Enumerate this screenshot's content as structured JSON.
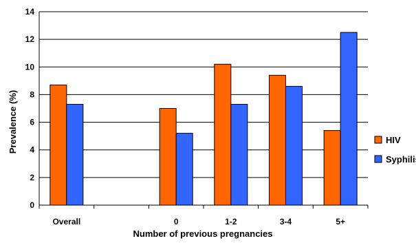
{
  "chart_data": {
    "type": "bar",
    "title": "",
    "xlabel": "Number of previous pregnancies",
    "ylabel": "Prevalence (%)",
    "ylim": [
      0,
      14
    ],
    "yticks": [
      0,
      2,
      4,
      6,
      8,
      10,
      12,
      14
    ],
    "grid": true,
    "legend_position": "right",
    "categories": [
      "Overall",
      "",
      "0",
      "1-2",
      "3-4",
      "5+"
    ],
    "series": [
      {
        "name": "HIV",
        "color": "#ff6600",
        "values": [
          8.7,
          null,
          7.0,
          10.2,
          9.4,
          5.4
        ]
      },
      {
        "name": "Syphilis",
        "color": "#3366ff",
        "values": [
          7.3,
          null,
          5.2,
          7.3,
          8.6,
          12.5
        ]
      }
    ]
  }
}
